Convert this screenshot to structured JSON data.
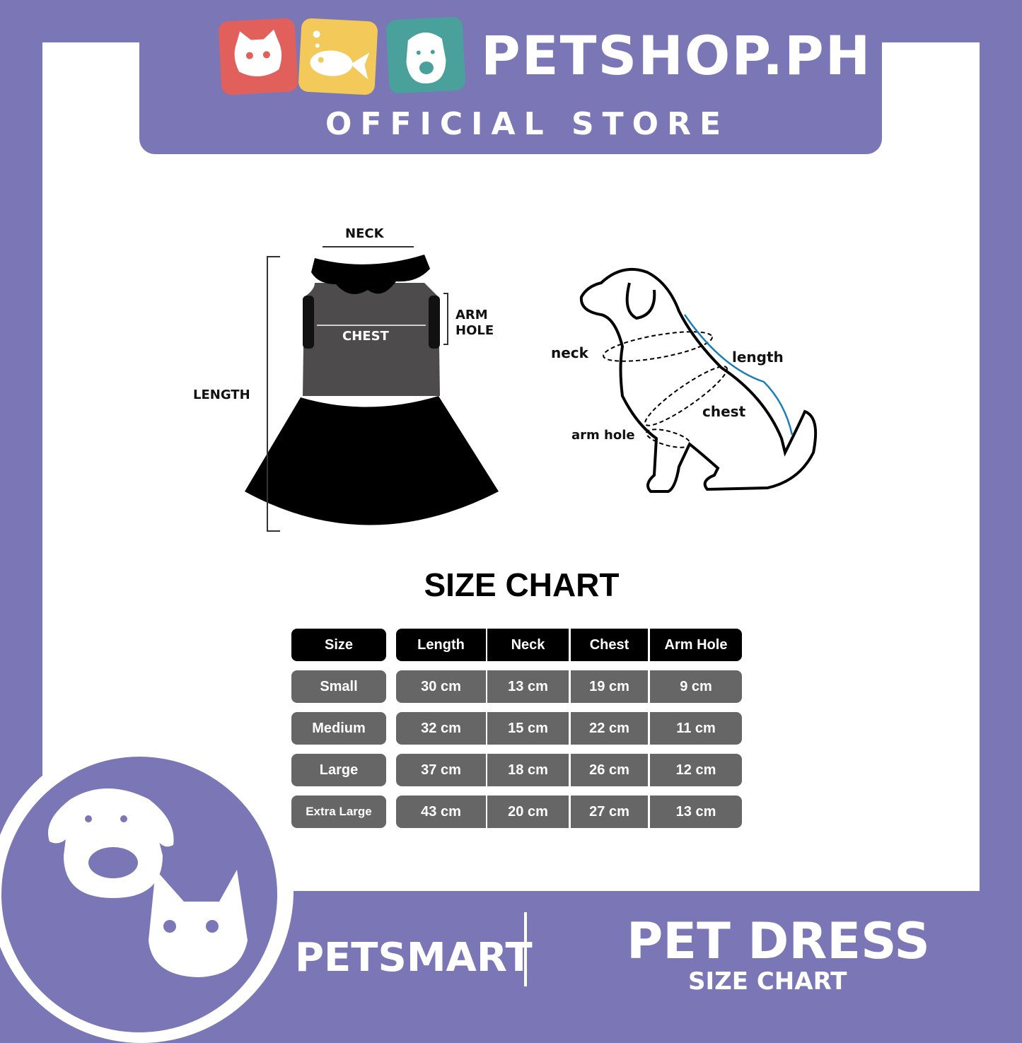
{
  "header": {
    "brand": "PETSHOP.PH",
    "subtitle": "OFFICIAL STORE",
    "logo_icons": [
      "cat-icon",
      "fish-icon",
      "dog-icon"
    ],
    "colors": {
      "purple": "#7b76b5",
      "red": "#e2605b",
      "yellow": "#f3c95a",
      "teal": "#4aa19b"
    }
  },
  "dress_diagram": {
    "neck": "NECK",
    "chest": "CHEST",
    "arm_hole_1": "ARM",
    "arm_hole_2": "HOLE",
    "length": "LENGTH"
  },
  "dog_diagram": {
    "neck": "neck",
    "length": "length",
    "chest": "chest",
    "arm_hole": "arm hole"
  },
  "size_chart": {
    "title": "SIZE CHART",
    "headers": [
      "Size",
      "Length",
      "Neck",
      "Chest",
      "Arm Hole"
    ],
    "rows": [
      [
        "Small",
        "30 cm",
        "13 cm",
        "19 cm",
        "9 cm"
      ],
      [
        "Medium",
        "32 cm",
        "15 cm",
        "22 cm",
        "11 cm"
      ],
      [
        "Large",
        "37 cm",
        "18 cm",
        "26 cm",
        "12 cm"
      ],
      [
        "Extra Large",
        "43 cm",
        "20 cm",
        "27 cm",
        "13 cm"
      ]
    ]
  },
  "footer": {
    "brand": "PETSMART",
    "product": "PET DRESS",
    "product_sub": "SIZE CHART"
  }
}
